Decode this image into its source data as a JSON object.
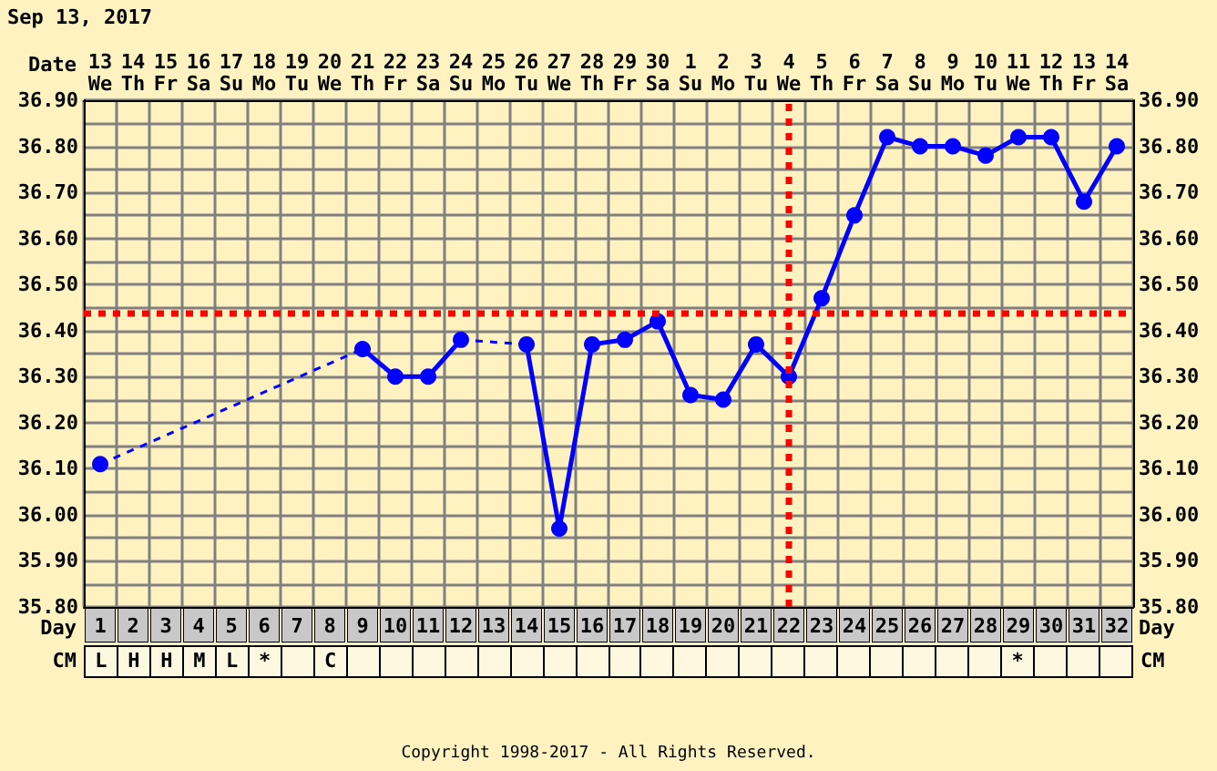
{
  "chart_data": [
    {
      "type": "line",
      "title": "Sep 13, 2017",
      "xlabel": "Date",
      "x2label": "Day",
      "categories": [
        "13 We",
        "14 Th",
        "15 Fr",
        "16 Sa",
        "17 Su",
        "18 Mo",
        "19 Tu",
        "20 We",
        "21 Th",
        "22 Fr",
        "23 Sa",
        "24 Su",
        "25 Mo",
        "26 Tu",
        "27 We",
        "28 Th",
        "29 Fr",
        "30 Sa",
        "1 Su",
        "2 Mo",
        "3 Tu",
        "4 We",
        "5 Th",
        "6 Fr",
        "7 Sa",
        "8 Su",
        "9 Mo",
        "10 Tu",
        "11 We",
        "12 Th",
        "13 Fr",
        "14 Sa"
      ],
      "series": [
        {
          "color": "#0000ff",
          "values": [
            36.11,
            null,
            null,
            null,
            null,
            null,
            null,
            null,
            36.36,
            36.3,
            36.3,
            36.38,
            null,
            36.37,
            35.97,
            36.37,
            36.38,
            36.42,
            36.26,
            36.25,
            36.37,
            36.3,
            36.47,
            36.65,
            36.82,
            36.8,
            36.8,
            36.78,
            36.82,
            36.82,
            36.68,
            36.8
          ]
        }
      ],
      "x2lim": [
        0.5,
        32.5
      ],
      "x2ticks": [
        1,
        2,
        3,
        4,
        5,
        6,
        7,
        8,
        9,
        10,
        11,
        12,
        13,
        14,
        15,
        16,
        17,
        18,
        19,
        20,
        21,
        22,
        23,
        24,
        25,
        26,
        27,
        28,
        29,
        30,
        31,
        32
      ],
      "ylim": [
        35.8,
        36.9
      ],
      "yticks": [
        {
          "value": 35.8,
          "label": "35.80"
        },
        {
          "value": 35.9,
          "label": "35.90"
        },
        {
          "value": 36.0,
          "label": "36.00"
        },
        {
          "value": 36.1,
          "label": "36.10"
        },
        {
          "value": 36.2,
          "label": "36.20"
        },
        {
          "value": 36.3,
          "label": "36.30"
        },
        {
          "value": 36.4,
          "label": "36.40"
        },
        {
          "value": 36.5,
          "label": "36.50"
        },
        {
          "value": 36.6,
          "label": "36.60"
        },
        {
          "value": 36.7,
          "label": "36.70"
        },
        {
          "value": 36.8,
          "label": "36.80"
        },
        {
          "value": 36.9,
          "label": "36.90"
        }
      ],
      "y2lim": [
        35.8,
        36.9
      ],
      "y2ticks": [
        {
          "value": 35.8,
          "label": "35.80"
        },
        {
          "value": 35.9,
          "label": "35.90"
        },
        {
          "value": 36.0,
          "label": "36.00"
        },
        {
          "value": 36.1,
          "label": "36.10"
        },
        {
          "value": 36.2,
          "label": "36.20"
        },
        {
          "value": 36.3,
          "label": "36.30"
        },
        {
          "value": 36.4,
          "label": "36.40"
        },
        {
          "value": 36.5,
          "label": "36.50"
        },
        {
          "value": 36.6,
          "label": "36.60"
        },
        {
          "value": 36.7,
          "label": "36.70"
        },
        {
          "value": 36.8,
          "label": "36.80"
        },
        {
          "value": 36.9,
          "label": "36.90"
        }
      ],
      "ref_lines": [
        {
          "axis": "x",
          "value": "4 We",
          "color": "#ff0000",
          "line_style": "dotted"
        },
        {
          "axis": "y",
          "value": 36.44,
          "color": "#ff0000",
          "line_style": "dotted"
        }
      ],
      "annotations": [
        "Copyright 1998-2017 - All Rights Reserved."
      ],
      "grid": true,
      "marker": "circle",
      "line_style": "solid"
    },
    {
      "type": "heatmap",
      "categories": [
        null,
        null,
        null,
        null,
        null,
        null,
        null,
        null,
        null,
        null,
        null,
        null,
        null,
        null,
        null,
        null,
        null,
        null,
        null,
        null,
        null,
        null,
        null,
        null,
        null,
        null,
        null,
        null,
        null,
        null,
        null,
        null
      ],
      "y_categories": [
        "CM"
      ],
      "y2_categories": [
        "CM"
      ],
      "cells": [
        [
          null,
          null,
          null,
          null,
          null,
          null,
          null,
          null,
          null,
          null,
          null,
          null,
          null,
          null,
          null,
          null,
          null,
          null,
          null,
          null,
          null,
          null,
          null,
          null,
          null,
          null,
          null,
          null,
          null,
          null,
          null,
          null
        ]
      ],
      "cell_labels": [
        [
          "L",
          "H",
          "H",
          "M",
          "L",
          "*",
          null,
          "C",
          null,
          null,
          null,
          null,
          null,
          null,
          null,
          null,
          null,
          null,
          null,
          null,
          null,
          null,
          null,
          null,
          null,
          null,
          null,
          null,
          "*",
          null,
          null,
          null
        ]
      ]
    }
  ]
}
